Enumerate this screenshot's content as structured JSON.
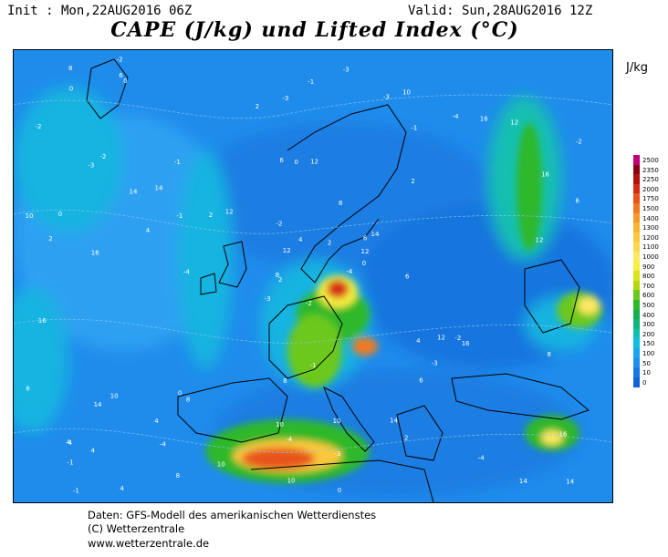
{
  "header": {
    "init": "Init : Mon,22AUG2016 06Z",
    "valid": "Valid: Sun,28AUG2016 12Z",
    "title": "CAPE (J/kg) und Lifted Index (°C)"
  },
  "legend": {
    "unit": "J/kg",
    "levels": [
      "2500",
      "2350",
      "2250",
      "2000",
      "1750",
      "1500",
      "1400",
      "1300",
      "1200",
      "1100",
      "1000",
      "900",
      "800",
      "700",
      "600",
      "500",
      "400",
      "300",
      "200",
      "150",
      "100",
      "50",
      "10",
      "0"
    ],
    "colors": [
      "#c0007a",
      "#8a0014",
      "#b31012",
      "#d42a14",
      "#e8541a",
      "#f07a20",
      "#f59a28",
      "#f7b432",
      "#fac83e",
      "#fcd850",
      "#fde862",
      "#f6ef40",
      "#d9e41e",
      "#b4d80e",
      "#6cc81a",
      "#2eb82c",
      "#12b04c",
      "#10b47c",
      "#0ec0b4",
      "#12bde0",
      "#1ca6f0",
      "#1e8ef0",
      "#1878e6",
      "#1262d8"
    ]
  },
  "map": {
    "li_labels": [
      "-2",
      "-3",
      "2",
      "4",
      "6",
      "8",
      "10",
      "12",
      "-1",
      "-4",
      "0",
      "14",
      "16"
    ]
  },
  "footer": {
    "line1": "Daten: GFS-Modell des amerikanischen Wetterdienstes",
    "line2": "(C) Wetterzentrale",
    "line3": "www.wetterzentrale.de"
  }
}
